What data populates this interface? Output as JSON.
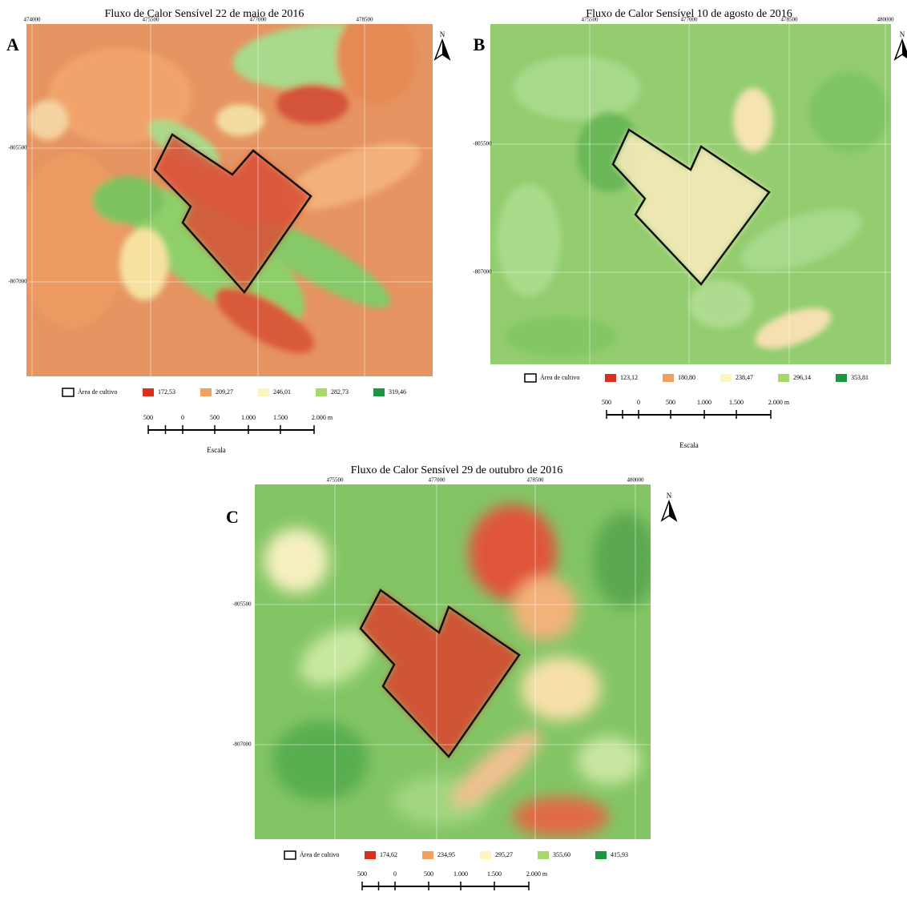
{
  "panels": [
    {
      "letter": "A",
      "title": "Fluxo de Calor Sensível 22 de maio de 2016",
      "x_labels": [
        "474000",
        "475500",
        "477000",
        "478500"
      ],
      "y_labels": [
        "-805500",
        "-807000"
      ],
      "north": "N",
      "legend": {
        "area": "Área de cultivo",
        "classes": [
          "172,53",
          "209,27",
          "246,01",
          "282,73",
          "319,46"
        ]
      },
      "scale": {
        "labels": [
          "500",
          "0",
          "500",
          "1.000",
          "1.500",
          "2.000 m"
        ],
        "caption": "Escala"
      }
    },
    {
      "letter": "B",
      "title": "Fluxo de Calor Sensível 10 de agosto de 2016",
      "x_labels": [
        "475500",
        "477000",
        "478500",
        "480000"
      ],
      "y_labels": [
        "-805500",
        "-807000"
      ],
      "north": "N",
      "legend": {
        "area": "Área de cultivo",
        "classes": [
          "123,12",
          "180,80",
          "238,47",
          "296,14",
          "353,81"
        ]
      },
      "scale": {
        "labels": [
          "500",
          "0",
          "500",
          "1.000",
          "1.500",
          "2.000 m"
        ],
        "caption": "Escala"
      }
    },
    {
      "letter": "C",
      "title": "Fluxo de Calor Sensível 29 de outubro de 2016",
      "x_labels": [
        "475500",
        "477000",
        "478500",
        "480000"
      ],
      "y_labels": [
        "-805500",
        "-807000"
      ],
      "north": "N",
      "legend": {
        "area": "Área de cultivo",
        "classes": [
          "174,62",
          "234,95",
          "295,27",
          "355,60",
          "415,93"
        ]
      },
      "scale": {
        "labels": [
          "500",
          "0",
          "500",
          "1.000",
          "1.500",
          "2.000 m"
        ]
      }
    }
  ]
}
